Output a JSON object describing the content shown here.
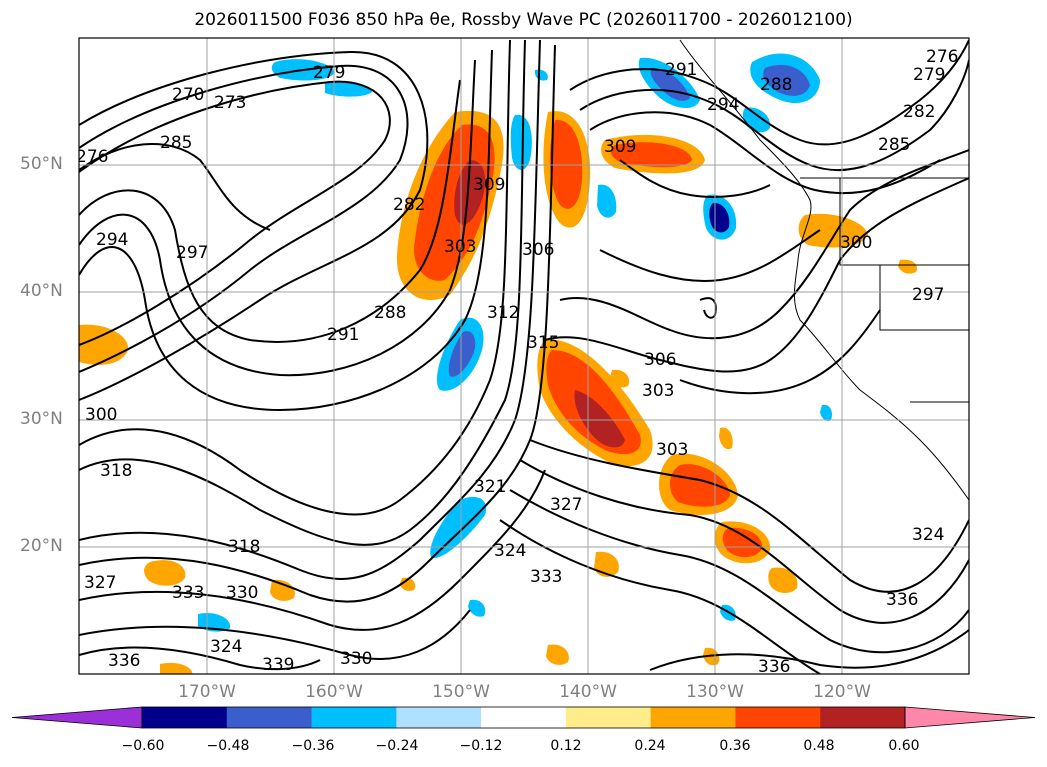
{
  "title": "2026011500 F036 850 hPa θe, Rossby Wave PC (2026011700 - 2026012100)",
  "lat_labels": [
    "50°N",
    "40°N",
    "30°N",
    "20°N"
  ],
  "lon_labels": [
    "170°W",
    "160°W",
    "150°W",
    "140°W",
    "130°W",
    "120°W"
  ],
  "contour_labels": [
    "270",
    "273",
    "276",
    "279",
    "285",
    "294",
    "297",
    "291",
    "288",
    "282",
    "303",
    "309",
    "306",
    "312",
    "315",
    "309",
    "291",
    "294",
    "288",
    "285",
    "282",
    "279",
    "276",
    "300",
    "297",
    "306",
    "303",
    "303",
    "300",
    "318",
    "327",
    "321",
    "318",
    "324",
    "333",
    "330",
    "324",
    "327",
    "330",
    "336",
    "336",
    "339",
    "333",
    "336",
    "324"
  ],
  "colorbar": {
    "colors": [
      "#9b30d8",
      "#00008b",
      "#3a5fcd",
      "#00bfff",
      "#b0e0ff",
      "#ffffff",
      "#ffec8b",
      "#ffa500",
      "#ff4500",
      "#b22222",
      "#ff88aa"
    ],
    "ticks": [
      "−0.60",
      "−0.48",
      "−0.36",
      "−0.24",
      "−0.12",
      "0.12",
      "0.24",
      "0.36",
      "0.48",
      "0.60"
    ]
  }
}
